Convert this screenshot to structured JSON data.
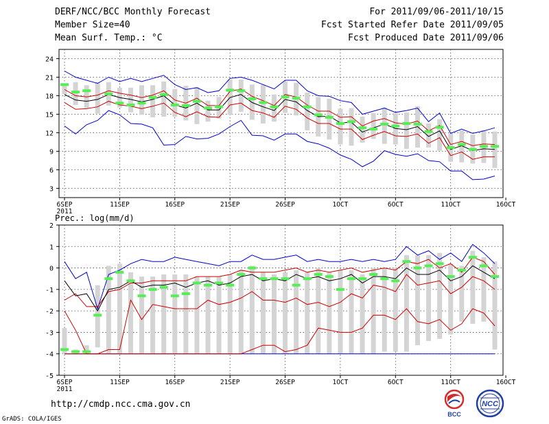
{
  "header": {
    "left": [
      "DERF/NCC/BCC Monthly Forecast",
      "Member Size=40",
      "Mean Surf. Temp.: °C"
    ],
    "right": [
      "For 2011/09/06-2011/10/15",
      "Fcst Started Refer Date 2011/09/05",
      "Fcst Produced Date 2011/09/06"
    ]
  },
  "footer": {
    "url": "http://cmdp.ncc.cma.gov.cn",
    "credit": "GrADS: COLA/IGES"
  },
  "logos": [
    {
      "text": "BCC",
      "icon": "bcc-logo-icon",
      "color": "#d42b2b"
    },
    {
      "text": "NCC",
      "icon": "ncc-logo-icon",
      "color": "#1f3fa8"
    }
  ],
  "colors": {
    "range": "#0000cc",
    "spread": "#cc0000",
    "ensemble": "#000000",
    "box": "#d4d4d4",
    "observed": "#55ee55",
    "grid": "#444444"
  },
  "chart_data": [
    {
      "type": "box",
      "title": "Mean Surf. Temp.: °C",
      "ylabel": "°C",
      "ylim": [
        1.5,
        25.5
      ],
      "yticks": [
        3,
        6,
        9,
        12,
        15,
        18,
        21,
        24
      ],
      "xticks": [
        {
          "day": 0,
          "label": "6SEP",
          "sub": "2011"
        },
        {
          "day": 5,
          "label": "11SEP"
        },
        {
          "day": 10,
          "label": "16SEP"
        },
        {
          "day": 15,
          "label": "21SEP"
        },
        {
          "day": 20,
          "label": "26SEP"
        },
        {
          "day": 25,
          "label": "1OCT"
        },
        {
          "day": 30,
          "label": "6OCT"
        },
        {
          "day": 35,
          "label": "11OCT"
        },
        {
          "day": 40,
          "label": "16OCT"
        }
      ],
      "days": 40,
      "series": [
        {
          "name": "max",
          "values": [
            22,
            21,
            20.5,
            20,
            21,
            20.3,
            20.8,
            20.3,
            20.8,
            21.3,
            19.8,
            19,
            19.3,
            18.5,
            18.8,
            20.8,
            21,
            20.5,
            19.8,
            19.1,
            20.5,
            20.5,
            18.8,
            18,
            17.9,
            17.2,
            16.9,
            15,
            15.5,
            16,
            15.3,
            15.6,
            16,
            13.8,
            15.2,
            11.9,
            12.6,
            11.9,
            12.3,
            12.8
          ]
        },
        {
          "name": "upper",
          "values": [
            19,
            18,
            17.8,
            18.1,
            18.8,
            18.4,
            18.1,
            17.7,
            18.1,
            18.8,
            17.3,
            16.8,
            17.6,
            16.4,
            16.4,
            18.7,
            19.1,
            17.9,
            17.2,
            16.4,
            18.2,
            17.8,
            16.5,
            15.5,
            15.5,
            14.5,
            14.6,
            13.1,
            13.9,
            14.3,
            13.6,
            13.4,
            13.9,
            12.3,
            13.2,
            10.1,
            10.6,
            9.9,
            10.2,
            10.1
          ]
        },
        {
          "name": "mean",
          "values": [
            18.2,
            17.3,
            17.1,
            17.4,
            18.2,
            17.7,
            17.4,
            17,
            17.4,
            18,
            16.5,
            16,
            16.8,
            15.7,
            15.7,
            17.7,
            18.2,
            16.9,
            16.2,
            15.6,
            17.4,
            17,
            15.6,
            14.6,
            14.7,
            13.6,
            13.7,
            12.1,
            12.8,
            13.4,
            12.7,
            12.5,
            13,
            11.4,
            12.3,
            9.3,
            9.9,
            9.1,
            9.4,
            9.3
          ]
        },
        {
          "name": "lower",
          "values": [
            16.9,
            15.8,
            15.9,
            16.2,
            17.1,
            16.5,
            16.3,
            15.9,
            16.3,
            16.8,
            15.3,
            14.6,
            15.4,
            14.6,
            14.5,
            16.5,
            16.8,
            15.6,
            15.2,
            14.5,
            16.3,
            15.8,
            14.4,
            13.5,
            13.5,
            12.6,
            12.6,
            10.9,
            11.6,
            12.2,
            11.5,
            11.4,
            11.8,
            10.3,
            11.2,
            8.3,
            8.9,
            7.7,
            8.1,
            8.1
          ]
        },
        {
          "name": "min",
          "values": [
            13.1,
            11.8,
            13.3,
            14,
            15.6,
            14.9,
            13.5,
            13.4,
            12.8,
            10,
            10.1,
            11.4,
            11,
            11.1,
            11.8,
            13,
            14,
            11.6,
            11.5,
            10.8,
            11.8,
            11.8,
            10.6,
            10.2,
            9.5,
            8.4,
            7.7,
            6.5,
            7.4,
            9.1,
            8.5,
            8.2,
            8.6,
            7.5,
            7.3,
            5.8,
            5.8,
            4.4,
            4.5,
            5
          ]
        },
        {
          "name": "box_high",
          "values": [
            20,
            20.2,
            19.7,
            20.2,
            20.2,
            19.3,
            19.3,
            19.7,
            19.7,
            20.3,
            19.1,
            19.6,
            19.4,
            17.2,
            17.8,
            20.6,
            20.6,
            19.8,
            19.8,
            18.2,
            20.3,
            20.1,
            18.5,
            17.8,
            17.5,
            15.9,
            16,
            14.6,
            15.2,
            16.1,
            15.2,
            15.3,
            16.3,
            13.5,
            14.2,
            11.9,
            12.4,
            11.7,
            12.4,
            12.2
          ]
        },
        {
          "name": "box_low",
          "values": [
            18.2,
            16.5,
            16,
            15.1,
            16.4,
            16.1,
            15.3,
            14.9,
            14.5,
            14.6,
            14.6,
            14,
            13.4,
            13.8,
            14.3,
            14.9,
            15.4,
            14.1,
            13.5,
            13.8,
            15.2,
            14.8,
            12.4,
            11.4,
            10.9,
            10.1,
            9.9,
            10.4,
            11,
            10.2,
            10.1,
            9.4,
            9.6,
            9.6,
            9.1,
            7.3,
            7.2,
            7,
            7.1,
            6.3
          ]
        },
        {
          "name": "observed",
          "values": [
            19.8,
            18.6,
            18.8,
            null,
            18.3,
            16.8,
            16.5,
            16.8,
            17.7,
            18.2,
            16.5,
            16.4,
            17.1,
            16,
            16.2,
            18.9,
            18.8,
            17.5,
            16.9,
            16.2,
            17.8,
            17.6,
            16.2,
            14.9,
            14.5,
            13.5,
            13.8,
            12.8,
            12.6,
            13.4,
            13.1,
            13.5,
            13.4,
            12.2,
            12.9,
            9.6,
            10.1,
            9.3,
            9.8,
            9.8
          ]
        }
      ]
    },
    {
      "type": "box",
      "title": "Prec.: log(mm/d)",
      "ylabel": "log(mm/d)",
      "ylim": [
        -5,
        2
      ],
      "yticks": [
        -5,
        -4,
        -3,
        -2,
        -1,
        0,
        1,
        2
      ],
      "xticks": [
        {
          "day": 0,
          "label": "6SEP",
          "sub": "2011"
        },
        {
          "day": 5,
          "label": "11SEP"
        },
        {
          "day": 10,
          "label": "16SEP"
        },
        {
          "day": 15,
          "label": "21SEP"
        },
        {
          "day": 20,
          "label": "26SEP"
        },
        {
          "day": 25,
          "label": "1OCT"
        },
        {
          "day": 30,
          "label": "6OCT"
        },
        {
          "day": 35,
          "label": "11OCT"
        },
        {
          "day": 40,
          "label": "16OCT"
        }
      ],
      "days": 40,
      "series": [
        {
          "name": "max",
          "values": [
            0.3,
            -0.5,
            -0.2,
            -1.9,
            -0.3,
            -0.1,
            0.2,
            0.4,
            0.3,
            0.3,
            0.5,
            0.4,
            0.3,
            0.2,
            0.1,
            0.3,
            0.3,
            0.6,
            0.4,
            0.4,
            0.5,
            0.6,
            0.3,
            0.4,
            0.3,
            0.3,
            0.4,
            0.3,
            0.4,
            0.3,
            0.4,
            1,
            0.6,
            0.8,
            0.4,
            0.7,
            0.3,
            1.1,
            0.7,
            0.2
          ]
        },
        {
          "name": "upper",
          "values": [
            -1.5,
            -1.2,
            -1.8,
            -1.8,
            -1.1,
            -1,
            -0.7,
            -0.7,
            -0.6,
            -0.6,
            -0.6,
            -0.6,
            -0.4,
            -0.4,
            -0.4,
            -0.3,
            -0.1,
            -0.2,
            -0.2,
            -0.2,
            -0.1,
            0,
            -0.2,
            -0.1,
            -0.2,
            -0.1,
            0,
            -0.2,
            -0.1,
            0,
            -0.1,
            0.3,
            0.2,
            0.4,
            0,
            0.2,
            -0.2,
            0.5,
            0.3,
            -0.3
          ]
        },
        {
          "name": "mean",
          "values": [
            -0.6,
            -1.3,
            -1.2,
            -2,
            -1,
            -0.9,
            -0.6,
            -0.9,
            -0.8,
            -0.8,
            -0.7,
            -0.9,
            -0.7,
            -0.6,
            -0.8,
            -0.7,
            -0.4,
            -0.3,
            -0.6,
            -0.5,
            -0.6,
            -0.3,
            -0.5,
            -0.4,
            -0.6,
            -0.5,
            -0.3,
            -0.7,
            -0.4,
            -0.4,
            -0.5,
            0,
            -0.3,
            -0.3,
            -0.1,
            -0.6,
            -0.4,
            0.1,
            -0.2,
            -0.5
          ]
        },
        {
          "name": "lower",
          "values": [
            -2,
            -2.9,
            -4,
            -4,
            -3.8,
            -3.8,
            -1.5,
            -2.4,
            -1.7,
            -1.8,
            -1.9,
            -1.9,
            -1.9,
            -1.5,
            -1.7,
            -1.6,
            -1.4,
            -1.1,
            -1.5,
            -1.5,
            -1.6,
            -1.4,
            -1.7,
            -1.6,
            -1.8,
            -1.6,
            -1.2,
            -1.4,
            -0.8,
            -0.9,
            -1.1,
            -0.3,
            -0.8,
            -0.7,
            -0.6,
            -1.2,
            -0.9,
            -0.4,
            -0.6,
            -1
          ]
        },
        {
          "name": "min",
          "values": [
            -4,
            -4,
            -4,
            -4,
            -4,
            -4,
            -4,
            -4,
            -4,
            -4,
            -4,
            -4,
            -4,
            -4,
            -4,
            -4,
            -4,
            -4,
            -4,
            -4,
            -4,
            -4,
            -4,
            -4,
            -4,
            -4,
            -4,
            -4,
            -4,
            -4,
            -4,
            -4,
            -4,
            -4,
            -4,
            -4,
            -4,
            -4,
            -4,
            -4
          ]
        },
        {
          "name": "low",
          "values": [
            -4,
            -4,
            -4,
            -4,
            -4,
            -4,
            -4,
            -4,
            -4,
            -4,
            -4,
            -4,
            -4,
            -4,
            -4,
            -4,
            -4,
            -3.8,
            -3.6,
            -3.6,
            -3.9,
            -3.8,
            -3.6,
            -2.8,
            -2.9,
            -3,
            -3,
            -2.8,
            -2.2,
            -2.2,
            -2.4,
            -1.9,
            -2.5,
            -2.6,
            -2.4,
            -2.9,
            -2.6,
            -1.9,
            -2.1,
            -2.7
          ]
        },
        {
          "name": "box_high",
          "values": [
            -2.8,
            -3.8,
            -3.6,
            -0.8,
            0.1,
            0.2,
            -0.2,
            -0.4,
            -0.4,
            -0.3,
            -0.3,
            -0.3,
            -0.4,
            -0.4,
            -0.4,
            -0.3,
            -0.1,
            0.1,
            -0.2,
            -0.3,
            -0.2,
            -0.1,
            -0.2,
            0,
            -0.2,
            -0.1,
            -0.1,
            -0.3,
            0,
            0,
            0,
            0.6,
            0.6,
            0.6,
            0.7,
            0.2,
            0.1,
            0.8,
            0.5,
            0.3
          ]
        },
        {
          "name": "box_low",
          "values": [
            -4,
            -4,
            -4,
            -3.7,
            -4,
            -4,
            -4,
            -4,
            -4,
            -4,
            -4,
            -4,
            -4,
            -4,
            -4,
            -4,
            -4,
            -4,
            -4,
            -4,
            -4,
            -4,
            -4,
            -4,
            -4,
            -4,
            -4,
            -4,
            -4,
            -3.9,
            -3.9,
            -3.9,
            -3.6,
            -3.4,
            -3.3,
            -3.1,
            -2.5,
            -2.6,
            -2.5,
            -3.8
          ]
        },
        {
          "name": "observed",
          "values": [
            -3.8,
            -3.9,
            -3.9,
            -2.2,
            -0.5,
            -0.2,
            -0.6,
            -1.3,
            -1,
            -0.9,
            -1.3,
            -1.2,
            -0.7,
            -0.8,
            -0.7,
            -0.8,
            -0.3,
            0,
            -0.5,
            -0.5,
            -0.5,
            -0.8,
            -0.5,
            -0.3,
            -0.4,
            -1,
            -0.5,
            -0.5,
            -0.3,
            -0.5,
            -0.6,
            0.3,
            0,
            0.1,
            0.2,
            -0.4,
            -0.1,
            0.5,
            0.1,
            -0.4
          ]
        }
      ]
    }
  ]
}
